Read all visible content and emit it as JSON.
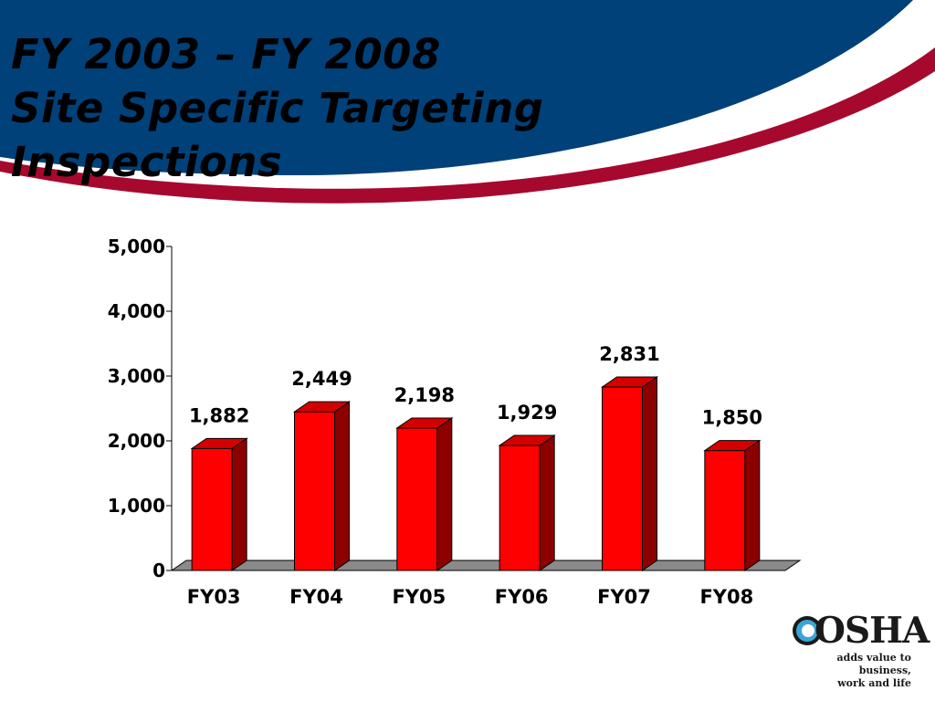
{
  "slide": {
    "title_lines": [
      "FY 2003 – FY 2008",
      "Site Specific Targeting",
      "Inspections"
    ],
    "colors": {
      "banner_blue": "#00417a",
      "banner_red": "#a6092d",
      "bar_front": "#ff0000",
      "bar_side": "#8c0000",
      "bar_top": "#d40000",
      "floor": "#8a8a8a"
    }
  },
  "logo": {
    "word": "OSHA",
    "tagline_lines": [
      "adds value to business,",
      "work and life"
    ]
  },
  "chart_data": {
    "type": "bar",
    "title": "",
    "xlabel": "",
    "ylabel": "",
    "categories": [
      "FY03",
      "FY04",
      "FY05",
      "FY06",
      "FY07",
      "FY08"
    ],
    "values": [
      1882,
      2449,
      2198,
      1929,
      2831,
      1850
    ],
    "data_labels": [
      "1,882",
      "2,449",
      "2,198",
      "1,929",
      "2,831",
      "1,850"
    ],
    "ylim": [
      0,
      5000
    ],
    "yticks": [
      0,
      1000,
      2000,
      3000,
      4000,
      5000
    ],
    "ytick_labels": [
      "0",
      "1,000",
      "2,000",
      "3,000",
      "4,000",
      "5,000"
    ],
    "grid": false,
    "legend": "none",
    "style": "3d-column"
  }
}
